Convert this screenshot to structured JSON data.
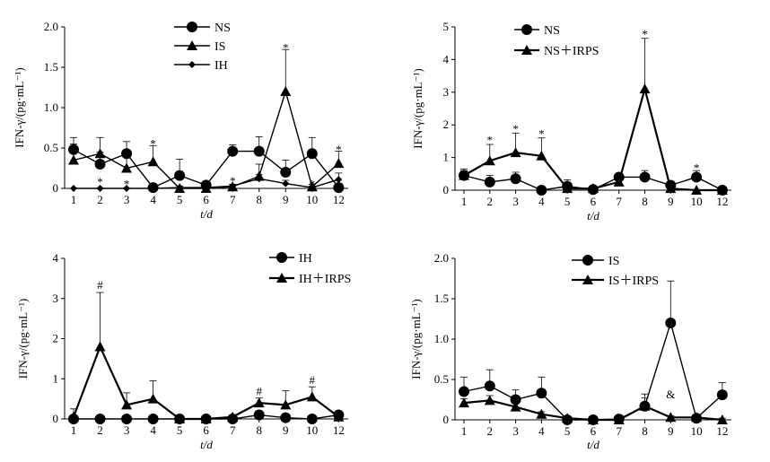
{
  "chart_data": [
    {
      "type": "line",
      "ylabel": "IFN-γ/(pg·mL⁻¹)",
      "xlabel": "t/d",
      "ylim": [
        0,
        2.0
      ],
      "yticks": [
        "0",
        "0.5",
        "1.0",
        "1.5",
        "2.0"
      ],
      "x_labels": [
        "1",
        "2",
        "3",
        "4",
        "5",
        "6",
        "7",
        "8",
        "9",
        "10",
        "12"
      ],
      "legend_position": "top-center",
      "series": [
        {
          "name": "NS",
          "marker": "circle",
          "values": [
            0.48,
            0.3,
            0.43,
            0.01,
            0.16,
            0.04,
            0.46,
            0.46,
            0.2,
            0.43,
            0.01
          ],
          "errors": [
            0.15,
            0.15,
            0.15,
            0.02,
            0.2,
            0.04,
            0.08,
            0.18,
            0.15,
            0.2,
            0.05
          ]
        },
        {
          "name": "IS",
          "marker": "triangle",
          "values": [
            0.35,
            0.43,
            0.25,
            0.33,
            0.0,
            0.0,
            0.02,
            0.15,
            1.2,
            0.02,
            0.31
          ],
          "errors": [
            0.2,
            0.2,
            0.15,
            0.2,
            0.03,
            0.02,
            0.03,
            0.15,
            0.52,
            0.03,
            0.15
          ]
        },
        {
          "name": "IH",
          "marker": "diamond",
          "values": [
            0.0,
            0.0,
            0.0,
            0.0,
            0.01,
            0.01,
            0.03,
            0.12,
            0.06,
            0.01,
            0.11
          ],
          "errors": [
            0,
            0,
            0,
            0,
            0.02,
            0.01,
            0.02,
            0.05,
            0.04,
            0.02,
            0.08
          ]
        }
      ],
      "annotations": [
        {
          "text": "*",
          "x": "2",
          "y": 0.09
        },
        {
          "text": "*",
          "x": "3",
          "y": 0.06
        },
        {
          "text": "*",
          "x": "4",
          "y": 0.56
        },
        {
          "text": "*",
          "x": "7",
          "y": 0.1
        },
        {
          "text": "*",
          "x": "9",
          "y": 1.75
        },
        {
          "text": "*",
          "x": "10",
          "y": 0.06
        },
        {
          "text": "*",
          "x": "12",
          "y": 0.49
        }
      ]
    },
    {
      "type": "line",
      "ylabel": "IFN-γ/(pg·mL⁻¹)",
      "xlabel": "t/d",
      "ylim": [
        0,
        5
      ],
      "yticks": [
        "0",
        "1",
        "2",
        "3",
        "4",
        "5"
      ],
      "x_labels": [
        "1",
        "2",
        "3",
        "4",
        "5",
        "6",
        "7",
        "8",
        "9",
        "10",
        "12"
      ],
      "legend_position": "top-center",
      "series": [
        {
          "name": "NS",
          "marker": "circle",
          "values": [
            0.45,
            0.25,
            0.35,
            0.0,
            0.12,
            0.02,
            0.4,
            0.4,
            0.15,
            0.4,
            0.0
          ],
          "errors": [
            0.2,
            0.2,
            0.2,
            0.05,
            0.2,
            0.05,
            0.1,
            0.2,
            0.1,
            0.2,
            0.05
          ]
        },
        {
          "name": "NS＋IRPS",
          "marker": "triangle",
          "values": [
            0.45,
            0.9,
            1.15,
            1.05,
            0.05,
            0.05,
            0.25,
            3.1,
            0.05,
            0.0,
            0.0
          ],
          "errors": [
            0.15,
            0.5,
            0.6,
            0.55,
            0.1,
            0.05,
            0.1,
            1.55,
            0.05,
            0.02,
            0.02
          ]
        }
      ],
      "annotations": [
        {
          "text": "*",
          "x": "2",
          "y": 1.55
        },
        {
          "text": "*",
          "x": "3",
          "y": 1.9
        },
        {
          "text": "*",
          "x": "4",
          "y": 1.75
        },
        {
          "text": "*",
          "x": "8",
          "y": 4.8
        },
        {
          "text": "*",
          "x": "10",
          "y": 0.7
        }
      ]
    },
    {
      "type": "line",
      "ylabel": "IFN-γ/(pg·mL⁻¹)",
      "xlabel": "t/d",
      "ylim": [
        0,
        4
      ],
      "yticks": [
        "0",
        "1",
        "2",
        "3",
        "4"
      ],
      "x_labels": [
        "1",
        "2",
        "3",
        "4",
        "5",
        "6",
        "7",
        "8",
        "9",
        "10",
        "12"
      ],
      "legend_position": "top-right",
      "series": [
        {
          "name": "IH",
          "marker": "circle",
          "values": [
            0.0,
            0.0,
            0.0,
            0.0,
            0.0,
            0.0,
            0.0,
            0.1,
            0.03,
            0.0,
            0.1
          ],
          "errors": [
            0.05,
            0.05,
            0.05,
            0.02,
            0.02,
            0.02,
            0.05,
            0.1,
            0.05,
            0.02,
            0.08
          ]
        },
        {
          "name": "IH＋IRPS",
          "marker": "triangle",
          "values": [
            0.05,
            1.8,
            0.35,
            0.5,
            0.0,
            0.0,
            0.05,
            0.4,
            0.35,
            0.55,
            0.05
          ],
          "errors": [
            0.2,
            1.35,
            0.3,
            0.45,
            0.05,
            0.03,
            0.05,
            0.12,
            0.35,
            0.25,
            0.05
          ]
        }
      ],
      "annotations": [
        {
          "text": "#",
          "x": "2",
          "y": 3.35
        },
        {
          "text": "#",
          "x": "8",
          "y": 0.7
        },
        {
          "text": "#",
          "x": "10",
          "y": 0.98
        }
      ]
    },
    {
      "type": "line",
      "ylabel": "IFN-γ/(pg·mL⁻¹)",
      "xlabel": "t/d",
      "ylim": [
        0,
        2.0
      ],
      "yticks": [
        "0",
        "0.5",
        "1.0",
        "1.5",
        "2.0"
      ],
      "x_labels": [
        "1",
        "2",
        "3",
        "4",
        "5",
        "6",
        "7",
        "8",
        "9",
        "10",
        "12"
      ],
      "legend_position": "top-center",
      "series": [
        {
          "name": "IS",
          "marker": "circle",
          "values": [
            0.35,
            0.42,
            0.25,
            0.33,
            0.0,
            0.0,
            0.01,
            0.17,
            1.2,
            0.02,
            0.31
          ],
          "errors": [
            0.18,
            0.2,
            0.12,
            0.2,
            0.03,
            0.02,
            0.03,
            0.15,
            0.52,
            0.03,
            0.15
          ]
        },
        {
          "name": "IS＋IRPS",
          "marker": "triangle",
          "values": [
            0.21,
            0.24,
            0.16,
            0.07,
            0.02,
            0.0,
            0.0,
            0.17,
            0.03,
            0.03,
            0.0
          ],
          "errors": [
            0.05,
            0.06,
            0.05,
            0.03,
            0.02,
            0.01,
            0.01,
            0.1,
            0.02,
            0.02,
            0.02
          ]
        }
      ],
      "annotations": [
        {
          "text": "&",
          "x": "9",
          "y": 0.32
        }
      ]
    }
  ]
}
